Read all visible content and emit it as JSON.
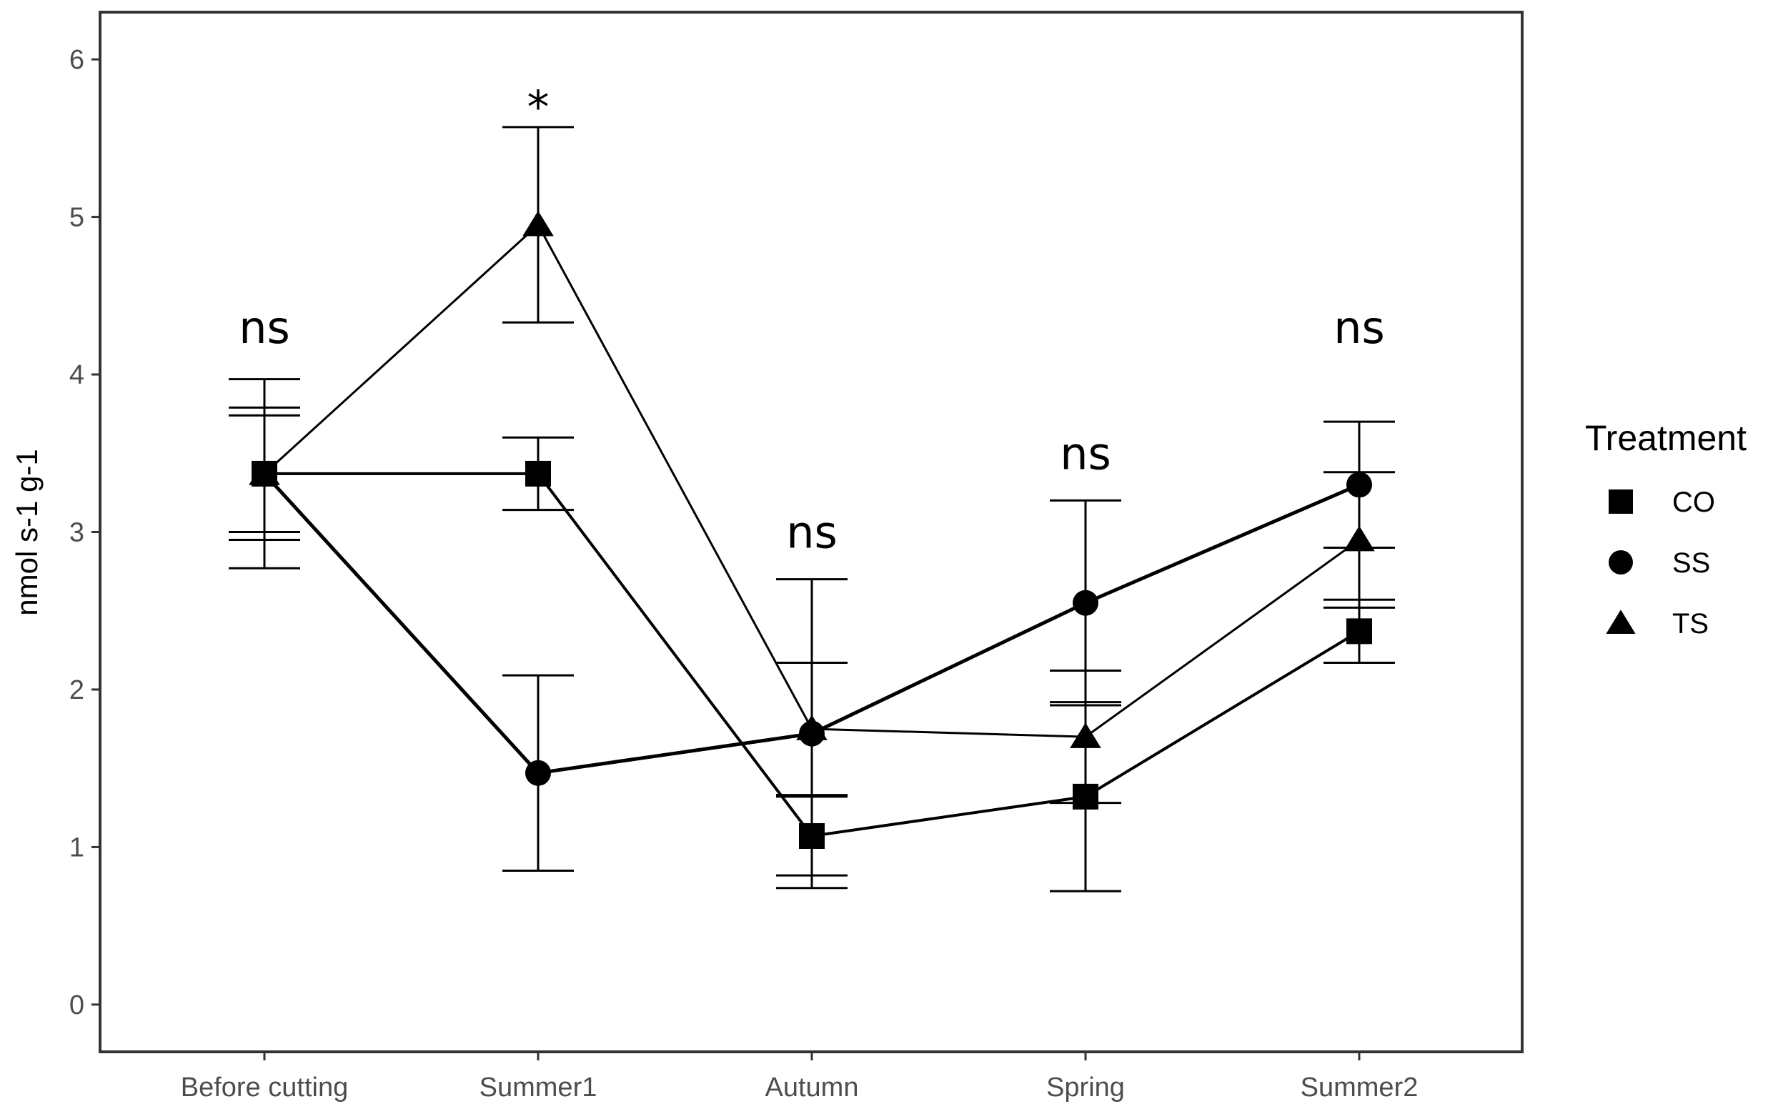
{
  "chart_data": {
    "type": "line",
    "title": "",
    "xlabel": "",
    "ylabel": "nmol s-1  g-1",
    "ylim": [
      -0.3,
      6.3
    ],
    "yticks": [
      0,
      1,
      2,
      3,
      4,
      5,
      6
    ],
    "categories": [
      "Before cutting",
      "Summer1",
      "Autumn",
      "Spring",
      "Summer2"
    ],
    "legend": {
      "title": "Treatment",
      "position": "right"
    },
    "series": [
      {
        "name": "CO",
        "marker": "square",
        "values": [
          3.37,
          3.37,
          1.07,
          1.32,
          2.37
        ],
        "err": [
          0.37,
          0.23,
          0.25,
          0.6,
          0.2
        ],
        "line_width": 4
      },
      {
        "name": "SS",
        "marker": "circle",
        "values": [
          3.37,
          1.47,
          1.72,
          2.55,
          3.3
        ],
        "err": [
          0.6,
          0.62,
          0.98,
          0.65,
          0.4
        ],
        "line_width": 5
      },
      {
        "name": "TS",
        "marker": "triangle",
        "values": [
          3.37,
          4.95,
          1.75,
          1.7,
          2.95
        ],
        "err": [
          0.42,
          0.62,
          0.42,
          0.42,
          0.43
        ],
        "line_width": 3
      }
    ],
    "annotations": [
      "ns",
      "*",
      "ns",
      "ns",
      "ns"
    ],
    "annotation_y": [
      4.2,
      5.6,
      2.9,
      3.4,
      4.2
    ]
  }
}
